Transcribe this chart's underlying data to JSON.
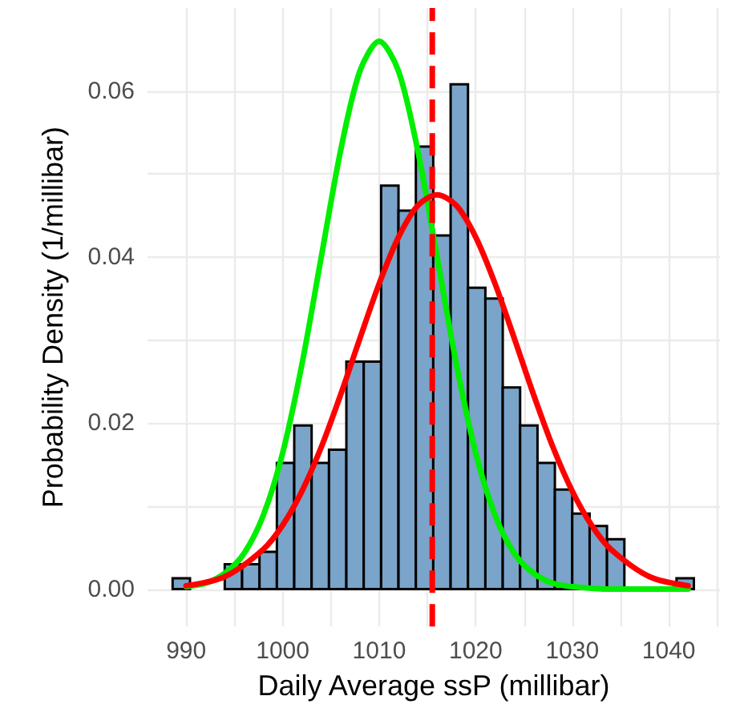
{
  "chart_data": {
    "type": "histogram",
    "xlabel": "Daily Average ssP (millibar)",
    "ylabel": "Probability Density (1/millibar)",
    "bins": [
      988.6,
      990.4,
      992.2,
      994.0,
      995.8,
      997.6,
      999.4,
      1001.2,
      1003.0,
      1004.8,
      1006.6,
      1008.4,
      1010.2,
      1012.0,
      1013.8,
      1015.6,
      1017.4,
      1019.2,
      1021.0,
      1022.8,
      1024.6,
      1026.4,
      1028.2,
      1030.0,
      1031.8,
      1033.6,
      1035.4,
      1037.2,
      1039.0,
      1040.8,
      1042.6
    ],
    "values": [
      0.0013,
      0,
      0,
      0.003,
      0.003,
      0.0045,
      0.0152,
      0.0197,
      0.0152,
      0.0168,
      0.0274,
      0.0274,
      0.0486,
      0.0456,
      0.0533,
      0.0426,
      0.0608,
      0.0363,
      0.035,
      0.0243,
      0.0197,
      0.0152,
      0.012,
      0.0091,
      0.0076,
      0.006,
      0,
      0,
      0,
      0.0013
    ],
    "color": "#7aa4c9",
    "series": [
      {
        "type": "line",
        "color": "#00ee00",
        "x": [
          990,
          992,
          994,
          996,
          998,
          1000,
          1002,
          1004,
          1006,
          1008,
          1010,
          1012,
          1014,
          1016,
          1018,
          1020,
          1022,
          1024,
          1026,
          1028,
          1030,
          1034,
          1038,
          1042
        ],
        "values": [
          0.0003,
          0.0007,
          0.0019,
          0.0043,
          0.0089,
          0.0164,
          0.0271,
          0.04,
          0.0528,
          0.0624,
          0.066,
          0.0624,
          0.0528,
          0.04,
          0.0271,
          0.0164,
          0.0089,
          0.0043,
          0.0019,
          0.0007,
          0.0003,
          0,
          0,
          0
        ]
      },
      {
        "type": "line",
        "color": "#ff0000",
        "x": [
          990,
          994,
          998,
          1000,
          1002,
          1004,
          1006,
          1008,
          1010,
          1012,
          1014,
          1016,
          1018,
          1020,
          1022,
          1024,
          1026,
          1028,
          1030,
          1032,
          1034,
          1038,
          1042
        ],
        "values": [
          0.0004,
          0.0015,
          0.0048,
          0.0077,
          0.0118,
          0.0171,
          0.0234,
          0.0302,
          0.0368,
          0.0424,
          0.0462,
          0.0475,
          0.0462,
          0.0424,
          0.0368,
          0.0302,
          0.0234,
          0.0171,
          0.0118,
          0.0077,
          0.0048,
          0.0015,
          0.0004
        ]
      }
    ],
    "ref_lines": [
      {
        "axis": "x",
        "value": 1015.5,
        "color": "#ff0000",
        "line_style": "dashed"
      }
    ],
    "xlim": [
      986,
      1045.3
    ],
    "ylim": [
      -0.0045,
      0.07
    ],
    "xticks": [
      990,
      {
        "value": 995,
        "label": null
      },
      1000,
      {
        "value": 1005,
        "label": null
      },
      1010,
      {
        "value": 1015,
        "label": null
      },
      1020,
      {
        "value": 1025,
        "label": null
      },
      1030,
      {
        "value": 1035,
        "label": null
      },
      1040,
      {
        "value": 1045,
        "label": null
      }
    ],
    "yticks": [
      {
        "value": 0,
        "label": "0.00"
      },
      {
        "value": 0.01,
        "label": null
      },
      {
        "value": 0.02,
        "label": "0.02"
      },
      {
        "value": 0.03,
        "label": null
      },
      {
        "value": 0.04,
        "label": "0.04"
      },
      {
        "value": 0.05,
        "label": null
      },
      {
        "value": 0.06,
        "label": "0.06"
      }
    ],
    "grid": true,
    "marker": "none",
    "line_style": "solid"
  }
}
